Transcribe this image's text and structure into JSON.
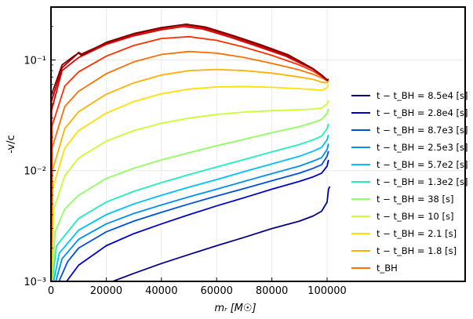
{
  "chart_data": {
    "type": "line",
    "xlabel": "m_r [M_⊙]",
    "ylabel": "-v/c",
    "xlim": [
      0,
      150000
    ],
    "ylim": [
      0.001,
      0.3
    ],
    "yscale": "log",
    "grid": true,
    "legend_position": "lower-right",
    "x_ticks": [
      0,
      20000,
      40000,
      60000,
      80000,
      100000
    ],
    "x_tick_labels": [
      "0",
      "20000",
      "40000",
      "60000",
      "80000",
      "100000"
    ],
    "y_ticks": [
      0.001,
      0.01,
      0.1
    ],
    "y_tick_labels": [
      "10⁻³",
      "10⁻²",
      "10⁻¹"
    ],
    "series": [
      {
        "name": "t − t_BH = 8.5e4 [s]",
        "color": "#00008b",
        "points": [
          [
            20000,
            0.00095
          ],
          [
            30000,
            0.00118
          ],
          [
            40000,
            0.00145
          ],
          [
            50000,
            0.00175
          ],
          [
            60000,
            0.0021
          ],
          [
            70000,
            0.0025
          ],
          [
            80000,
            0.003
          ],
          [
            90000,
            0.0035
          ],
          [
            95000,
            0.0039
          ],
          [
            98000,
            0.0043
          ],
          [
            100000,
            0.0052
          ],
          [
            100500,
            0.0068
          ],
          [
            101000,
            0.0072
          ]
        ]
      },
      {
        "name": "t − t_BH = 2.8e4 [s]",
        "color": "#0000cd",
        "points": [
          [
            5000,
            0.00095
          ],
          [
            10000,
            0.0014
          ],
          [
            20000,
            0.0021
          ],
          [
            30000,
            0.0027
          ],
          [
            40000,
            0.0033
          ],
          [
            50000,
            0.004
          ],
          [
            60000,
            0.0048
          ],
          [
            70000,
            0.0057
          ],
          [
            80000,
            0.0068
          ],
          [
            90000,
            0.008
          ],
          [
            95000,
            0.0088
          ],
          [
            98000,
            0.0095
          ],
          [
            100000,
            0.011
          ],
          [
            100500,
            0.0125
          ]
        ]
      },
      {
        "name": "t − t_BH = 8.7e3 [s]",
        "color": "#0050e0",
        "points": [
          [
            2500,
            0.00095
          ],
          [
            6000,
            0.0015
          ],
          [
            10000,
            0.002
          ],
          [
            20000,
            0.0028
          ],
          [
            30000,
            0.0035
          ],
          [
            40000,
            0.0042
          ],
          [
            50000,
            0.005
          ],
          [
            60000,
            0.0059
          ],
          [
            70000,
            0.0069
          ],
          [
            80000,
            0.0081
          ],
          [
            90000,
            0.0095
          ],
          [
            95000,
            0.0105
          ],
          [
            98000,
            0.0113
          ],
          [
            100000,
            0.0135
          ],
          [
            100500,
            0.015
          ]
        ]
      },
      {
        "name": "t − t_BH = 2.5e3 [s]",
        "color": "#0090f0",
        "points": [
          [
            1500,
            0.00095
          ],
          [
            4000,
            0.0016
          ],
          [
            10000,
            0.0024
          ],
          [
            20000,
            0.0033
          ],
          [
            30000,
            0.0041
          ],
          [
            40000,
            0.0049
          ],
          [
            50000,
            0.0058
          ],
          [
            60000,
            0.0068
          ],
          [
            70000,
            0.008
          ],
          [
            80000,
            0.0094
          ],
          [
            90000,
            0.011
          ],
          [
            95000,
            0.0122
          ],
          [
            98000,
            0.0131
          ],
          [
            100000,
            0.0155
          ],
          [
            100500,
            0.0175
          ]
        ]
      },
      {
        "name": "t − t_BH = 5.7e2 [s]",
        "color": "#00bfff",
        "points": [
          [
            800,
            0.00095
          ],
          [
            3000,
            0.0018
          ],
          [
            10000,
            0.0029
          ],
          [
            20000,
            0.004
          ],
          [
            30000,
            0.005
          ],
          [
            40000,
            0.006
          ],
          [
            50000,
            0.0071
          ],
          [
            60000,
            0.0083
          ],
          [
            70000,
            0.0098
          ],
          [
            80000,
            0.0115
          ],
          [
            90000,
            0.0135
          ],
          [
            95000,
            0.015
          ],
          [
            98000,
            0.0162
          ],
          [
            100000,
            0.019
          ],
          [
            100500,
            0.021
          ]
        ]
      },
      {
        "name": "t − t_BH = 1.3e2 [s]",
        "color": "#20f0b8",
        "points": [
          [
            400,
            0.00095
          ],
          [
            2000,
            0.0021
          ],
          [
            10000,
            0.0037
          ],
          [
            20000,
            0.0052
          ],
          [
            30000,
            0.0065
          ],
          [
            40000,
            0.0078
          ],
          [
            50000,
            0.0092
          ],
          [
            60000,
            0.0108
          ],
          [
            70000,
            0.0126
          ],
          [
            80000,
            0.0148
          ],
          [
            90000,
            0.0172
          ],
          [
            95000,
            0.019
          ],
          [
            98000,
            0.0205
          ],
          [
            100000,
            0.024
          ],
          [
            100500,
            0.0265
          ]
        ]
      },
      {
        "name": "t − t_BH = 38 [s]",
        "color": "#8fff60",
        "points": [
          [
            200,
            0.00095
          ],
          [
            1500,
            0.0028
          ],
          [
            5000,
            0.0045
          ],
          [
            10000,
            0.006
          ],
          [
            20000,
            0.0085
          ],
          [
            30000,
            0.0105
          ],
          [
            40000,
            0.0125
          ],
          [
            50000,
            0.0145
          ],
          [
            60000,
            0.0168
          ],
          [
            70000,
            0.0192
          ],
          [
            80000,
            0.022
          ],
          [
            90000,
            0.025
          ],
          [
            95000,
            0.0272
          ],
          [
            98000,
            0.029
          ],
          [
            100000,
            0.033
          ],
          [
            100500,
            0.036
          ]
        ]
      },
      {
        "name": "t − t_BH = 10 [s]",
        "color": "#c8ff30",
        "points": [
          [
            100,
            0.00095
          ],
          [
            1000,
            0.0045
          ],
          [
            5000,
            0.009
          ],
          [
            10000,
            0.013
          ],
          [
            20000,
            0.0185
          ],
          [
            30000,
            0.023
          ],
          [
            40000,
            0.0268
          ],
          [
            50000,
            0.0298
          ],
          [
            60000,
            0.0322
          ],
          [
            70000,
            0.0338
          ],
          [
            80000,
            0.0348
          ],
          [
            90000,
            0.0355
          ],
          [
            95000,
            0.036
          ],
          [
            98000,
            0.0368
          ],
          [
            100000,
            0.04
          ],
          [
            100500,
            0.043
          ]
        ]
      },
      {
        "name": "t − t_BH = 2.1 [s]",
        "color": "#ffe000",
        "points": [
          [
            50,
            0.00095
          ],
          [
            700,
            0.007
          ],
          [
            5000,
            0.016
          ],
          [
            10000,
            0.023
          ],
          [
            20000,
            0.033
          ],
          [
            30000,
            0.042
          ],
          [
            40000,
            0.0495
          ],
          [
            50000,
            0.0545
          ],
          [
            60000,
            0.057
          ],
          [
            70000,
            0.0575
          ],
          [
            80000,
            0.0565
          ],
          [
            90000,
            0.055
          ],
          [
            95000,
            0.054
          ],
          [
            98000,
            0.053
          ],
          [
            100000,
            0.056
          ],
          [
            100500,
            0.06
          ]
        ]
      },
      {
        "name": "t − t_BH = 1.8 [s]",
        "color": "#ffb000",
        "points": [
          [
            30,
            0.00095
          ],
          [
            500,
            0.01
          ],
          [
            5000,
            0.024
          ],
          [
            10000,
            0.034
          ],
          [
            20000,
            0.049
          ],
          [
            30000,
            0.062
          ],
          [
            40000,
            0.073
          ],
          [
            50000,
            0.08
          ],
          [
            60000,
            0.082
          ],
          [
            70000,
            0.08
          ],
          [
            80000,
            0.076
          ],
          [
            90000,
            0.07
          ],
          [
            95000,
            0.0665
          ],
          [
            98000,
            0.063
          ],
          [
            100000,
            0.062
          ],
          [
            100500,
            0.064
          ]
        ]
      },
      {
        "name": "t_BH",
        "color": "#ff7000",
        "points": [
          [
            20,
            0.00095
          ],
          [
            400,
            0.016
          ],
          [
            5000,
            0.038
          ],
          [
            10000,
            0.052
          ],
          [
            20000,
            0.075
          ],
          [
            30000,
            0.096
          ],
          [
            40000,
            0.112
          ],
          [
            50000,
            0.119
          ],
          [
            60000,
            0.115
          ],
          [
            70000,
            0.105
          ],
          [
            80000,
            0.093
          ],
          [
            90000,
            0.081
          ],
          [
            95000,
            0.074
          ],
          [
            98000,
            0.069
          ],
          [
            100000,
            0.065
          ],
          [
            100500,
            0.066
          ]
        ]
      },
      {
        "color": "#ff3000",
        "points": [
          [
            15,
            0.00095
          ],
          [
            300,
            0.025
          ],
          [
            5000,
            0.058
          ],
          [
            10000,
            0.078
          ],
          [
            20000,
            0.108
          ],
          [
            30000,
            0.135
          ],
          [
            40000,
            0.156
          ],
          [
            50000,
            0.162
          ],
          [
            60000,
            0.15
          ],
          [
            70000,
            0.13
          ],
          [
            80000,
            0.11
          ],
          [
            90000,
            0.09
          ],
          [
            95000,
            0.079
          ],
          [
            98000,
            0.071
          ],
          [
            100000,
            0.065
          ],
          [
            100500,
            0.066
          ]
        ]
      },
      {
        "color": "#e00000",
        "points": [
          [
            10,
            0.00095
          ],
          [
            200,
            0.035
          ],
          [
            4000,
            0.08
          ],
          [
            10000,
            0.105
          ],
          [
            20000,
            0.138
          ],
          [
            30000,
            0.165
          ],
          [
            40000,
            0.187
          ],
          [
            48000,
            0.2
          ],
          [
            55000,
            0.19
          ],
          [
            65000,
            0.16
          ],
          [
            75000,
            0.132
          ],
          [
            85000,
            0.108
          ],
          [
            95000,
            0.082
          ],
          [
            98000,
            0.072
          ],
          [
            100000,
            0.065
          ],
          [
            100500,
            0.066
          ]
        ]
      },
      {
        "color": "#b00000",
        "points": [
          [
            8,
            0.00095
          ],
          [
            150,
            0.042
          ],
          [
            4000,
            0.085
          ],
          [
            9000,
            0.11
          ],
          [
            10000,
            0.117
          ],
          [
            11000,
            0.113
          ],
          [
            20000,
            0.142
          ],
          [
            30000,
            0.17
          ],
          [
            40000,
            0.193
          ],
          [
            48000,
            0.207
          ],
          [
            55000,
            0.196
          ],
          [
            65000,
            0.165
          ],
          [
            75000,
            0.136
          ],
          [
            85000,
            0.111
          ],
          [
            95000,
            0.083
          ],
          [
            98000,
            0.073
          ],
          [
            100000,
            0.066
          ],
          [
            100500,
            0.067
          ]
        ]
      },
      {
        "color": "#800000",
        "points": [
          [
            5,
            0.00095
          ],
          [
            100,
            0.048
          ],
          [
            4000,
            0.09
          ],
          [
            8000,
            0.107
          ],
          [
            10000,
            0.115
          ],
          [
            11000,
            0.11
          ],
          [
            20000,
            0.144
          ],
          [
            30000,
            0.173
          ],
          [
            40000,
            0.196
          ],
          [
            49000,
            0.21
          ],
          [
            56000,
            0.198
          ],
          [
            66000,
            0.166
          ],
          [
            76000,
            0.137
          ],
          [
            86000,
            0.111
          ],
          [
            95000,
            0.083
          ],
          [
            98000,
            0.073
          ],
          [
            100000,
            0.066
          ],
          [
            100500,
            0.067
          ]
        ]
      }
    ]
  }
}
